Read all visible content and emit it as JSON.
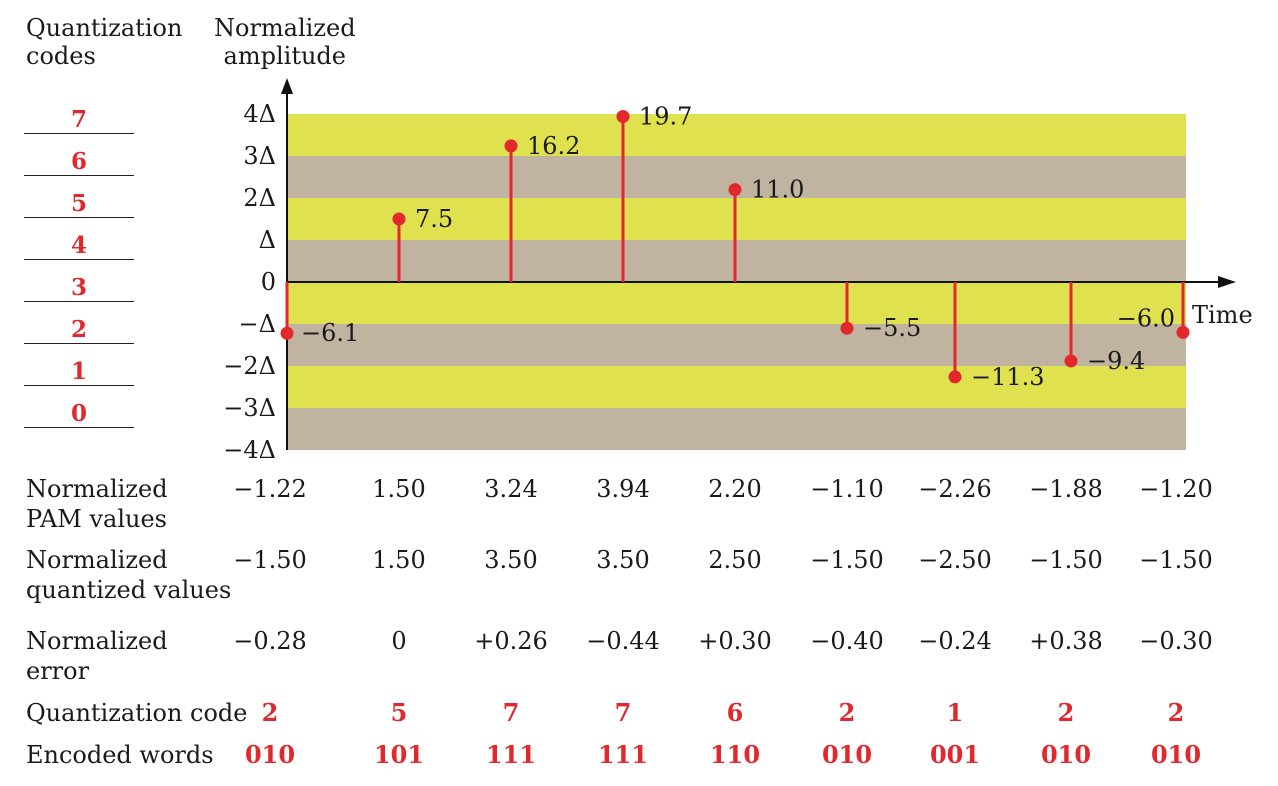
{
  "header": {
    "left": "Quantization\ncodes",
    "right": "Normalized\namplitude"
  },
  "quantization_codes": [
    "7",
    "6",
    "5",
    "4",
    "3",
    "2",
    "1",
    "0"
  ],
  "axis": {
    "x_label": "Time",
    "y_ticks": [
      "4Δ",
      "3Δ",
      "2Δ",
      "Δ",
      "0",
      "−Δ",
      "−2Δ",
      "−3Δ",
      "−4Δ"
    ]
  },
  "colors": {
    "band_a": "#dfe14e",
    "band_b": "#c0b4a0",
    "stem": "#e0282d",
    "code_text": "#e0282d"
  },
  "chart_data": {
    "type": "stem",
    "ylim": [
      -4,
      4
    ],
    "samples": [
      {
        "label": "−6.1",
        "y": -1.22
      },
      {
        "label": "7.5",
        "y": 1.5
      },
      {
        "label": "16.2",
        "y": 3.24
      },
      {
        "label": "19.7",
        "y": 3.94
      },
      {
        "label": "11.0",
        "y": 2.2
      },
      {
        "label": "−5.5",
        "y": -1.1
      },
      {
        "label": "−11.3",
        "y": -2.26
      },
      {
        "label": "−9.4",
        "y": -1.88
      },
      {
        "label": "−6.0",
        "y": -1.2
      }
    ]
  },
  "table": {
    "rows": [
      {
        "label": "Normalized\nPAM values",
        "values": [
          "−1.22",
          "1.50",
          "3.24",
          "3.94",
          "2.20",
          "−1.10",
          "−2.26",
          "−1.88",
          "−1.20"
        ],
        "red": false
      },
      {
        "label": "Normalized\nquantized values",
        "values": [
          "−1.50",
          "1.50",
          "3.50",
          "3.50",
          "2.50",
          "−1.50",
          "−2.50",
          "−1.50",
          "−1.50"
        ],
        "red": false
      },
      {
        "label": "Normalized\nerror",
        "values": [
          "−0.28",
          "0",
          "+0.26",
          "−0.44",
          "+0.30",
          "−0.40",
          "−0.24",
          "+0.38",
          "−0.30"
        ],
        "red": false
      },
      {
        "label": "Quantization code",
        "values": [
          "2",
          "5",
          "7",
          "7",
          "6",
          "2",
          "1",
          "2",
          "2"
        ],
        "red": true
      },
      {
        "label": "Encoded words",
        "values": [
          "010",
          "101",
          "111",
          "111",
          "110",
          "010",
          "001",
          "010",
          "010"
        ],
        "red": true
      }
    ]
  }
}
